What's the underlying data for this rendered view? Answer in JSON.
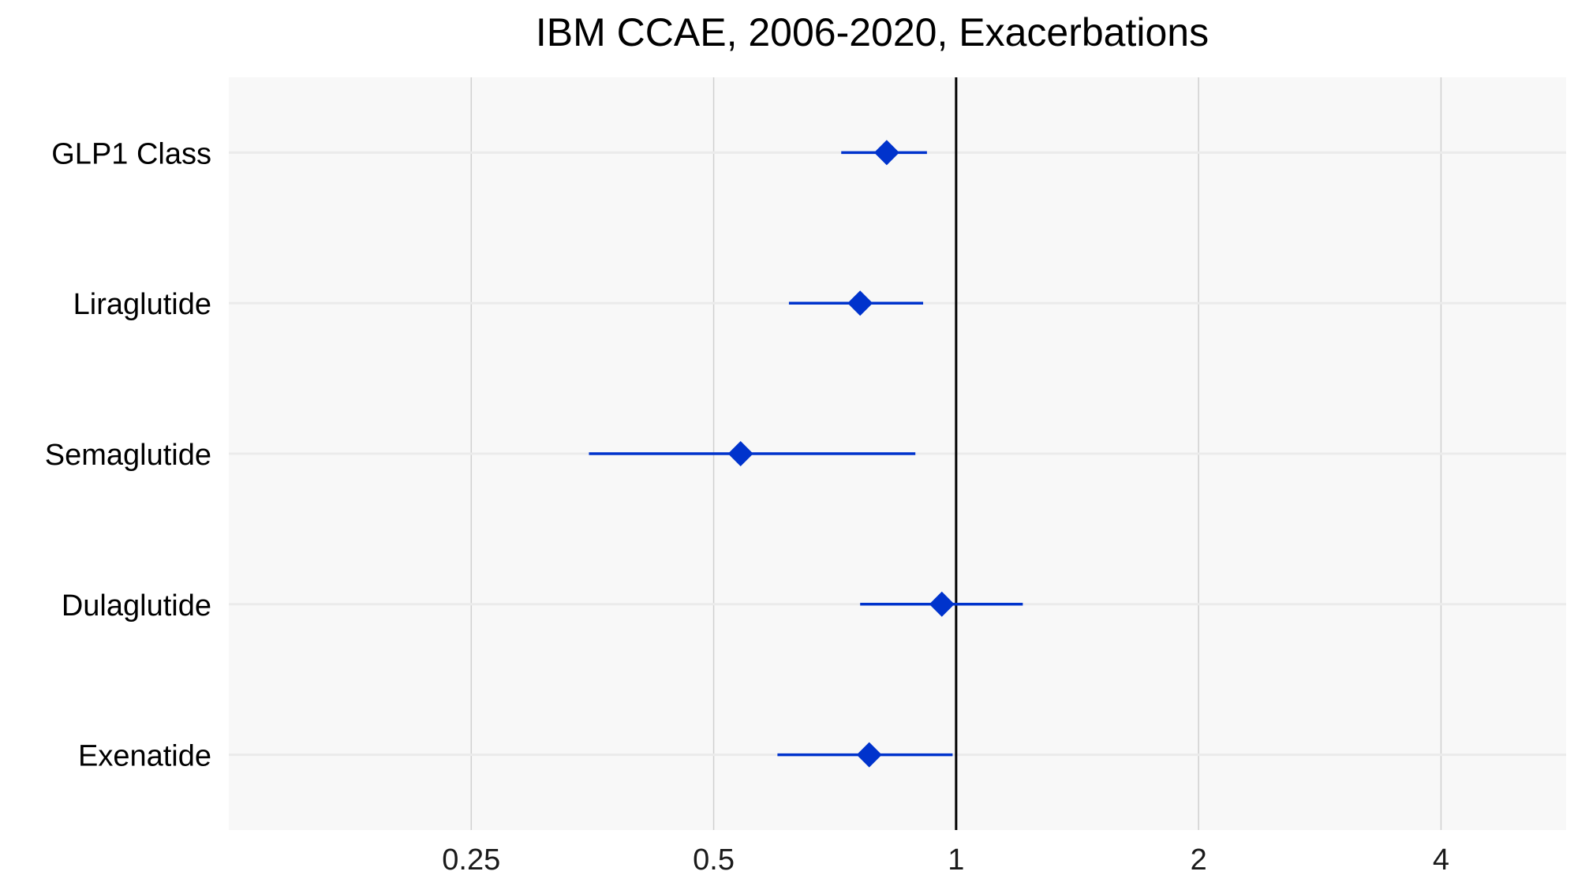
{
  "chart_data": {
    "type": "scatter",
    "title": "IBM CCAE, 2006-2020, Exacerbations",
    "xlabel": "",
    "ylabel": "",
    "x_scale": "log2",
    "xlim": [
      0.125,
      5.72
    ],
    "x_ticks": [
      0.25,
      0.5,
      1,
      2,
      4
    ],
    "x_tick_labels": [
      "0.25",
      "0.5",
      "1",
      "2",
      "4"
    ],
    "reference_line": 1,
    "grid": true,
    "colors": {
      "point": "#0033CC",
      "panel": "#F8F8F8",
      "grid": "#D0D0D0",
      "row_grid": "#EBEBEB",
      "reference": "#000000"
    },
    "categories": [
      "GLP1 Class",
      "Liraglutide",
      "Semaglutide",
      "Dulaglutide",
      "Exenatide"
    ],
    "series": [
      {
        "estimate": [
          0.82,
          0.76,
          0.54,
          0.96,
          0.78
        ],
        "lower": [
          0.72,
          0.62,
          0.35,
          0.76,
          0.6
        ],
        "upper": [
          0.92,
          0.91,
          0.89,
          1.21,
          0.99
        ]
      }
    ]
  }
}
